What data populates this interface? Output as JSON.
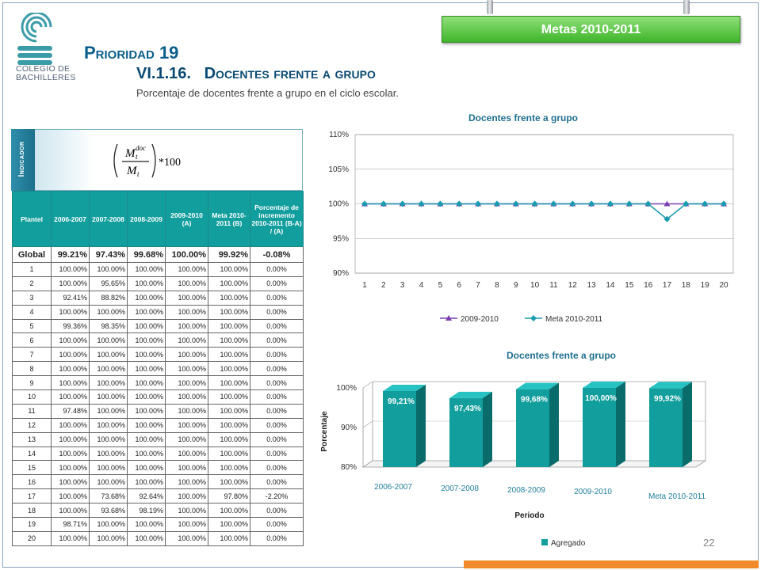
{
  "header": {
    "metas": "Metas 2010-2011",
    "prioridad": "Prioridad 19",
    "section": "VI.1.16.   Docentes frente a grupo",
    "subtitle": "Porcentaje de docentes frente a grupo en el ciclo escolar.",
    "logo_line1": "COLEGIO DE",
    "logo_line2": "BACHILLERES"
  },
  "indicador": {
    "label": "Indicador",
    "formula_numerator": "M",
    "formula_numerator_sup": "doc",
    "formula_numerator_sub": "t",
    "formula_denominator": "M",
    "formula_denominator_sub": "t",
    "formula_multiplier": "*100"
  },
  "table": {
    "headers": [
      "Plantel",
      "2006-2007",
      "2007-2008",
      "2008-2009",
      "2009-2010 (A)",
      "Meta 2010-2011 (B)",
      "Porcentaje de incremento 2010-2011 (B-A) / (A)"
    ],
    "global": [
      "Global",
      "99.21%",
      "97.43%",
      "99.68%",
      "100.00%",
      "99.92%",
      "-0.08%"
    ],
    "rows": [
      [
        "1",
        "100.00%",
        "100.00%",
        "100.00%",
        "100.00%",
        "100.00%",
        "0.00%"
      ],
      [
        "2",
        "100.00%",
        "95.65%",
        "100.00%",
        "100.00%",
        "100.00%",
        "0.00%"
      ],
      [
        "3",
        "92.41%",
        "88.82%",
        "100.00%",
        "100.00%",
        "100.00%",
        "0.00%"
      ],
      [
        "4",
        "100.00%",
        "100.00%",
        "100.00%",
        "100.00%",
        "100.00%",
        "0.00%"
      ],
      [
        "5",
        "99.36%",
        "98.35%",
        "100.00%",
        "100.00%",
        "100.00%",
        "0.00%"
      ],
      [
        "6",
        "100.00%",
        "100.00%",
        "100.00%",
        "100.00%",
        "100.00%",
        "0.00%"
      ],
      [
        "7",
        "100.00%",
        "100.00%",
        "100.00%",
        "100.00%",
        "100.00%",
        "0.00%"
      ],
      [
        "8",
        "100.00%",
        "100.00%",
        "100.00%",
        "100.00%",
        "100.00%",
        "0.00%"
      ],
      [
        "9",
        "100.00%",
        "100.00%",
        "100.00%",
        "100.00%",
        "100.00%",
        "0.00%"
      ],
      [
        "10",
        "100.00%",
        "100.00%",
        "100.00%",
        "100.00%",
        "100.00%",
        "0.00%"
      ],
      [
        "11",
        "97.48%",
        "100.00%",
        "100.00%",
        "100.00%",
        "100.00%",
        "0.00%"
      ],
      [
        "12",
        "100.00%",
        "100.00%",
        "100.00%",
        "100.00%",
        "100.00%",
        "0.00%"
      ],
      [
        "13",
        "100.00%",
        "100.00%",
        "100.00%",
        "100.00%",
        "100.00%",
        "0.00%"
      ],
      [
        "14",
        "100.00%",
        "100.00%",
        "100.00%",
        "100.00%",
        "100.00%",
        "0.00%"
      ],
      [
        "15",
        "100.00%",
        "100.00%",
        "100.00%",
        "100.00%",
        "100.00%",
        "0.00%"
      ],
      [
        "16",
        "100.00%",
        "100.00%",
        "100.00%",
        "100.00%",
        "100.00%",
        "0.00%"
      ],
      [
        "17",
        "100.00%",
        "73.68%",
        "92.64%",
        "100.00%",
        "97.80%",
        "-2.20%"
      ],
      [
        "18",
        "100.00%",
        "93.68%",
        "98.19%",
        "100.00%",
        "100.00%",
        "0.00%"
      ],
      [
        "19",
        "98.71%",
        "100.00%",
        "100.00%",
        "100.00%",
        "100.00%",
        "0.00%"
      ],
      [
        "20",
        "100.00%",
        "100.00%",
        "100.00%",
        "100.00%",
        "100.00%",
        "0.00%"
      ]
    ]
  },
  "page_number": "22",
  "colors": {
    "teal": "#139e9e",
    "purple": "#7a3fb0",
    "line_teal": "#1b9bb0",
    "green_badge": "#3fb52a",
    "orange_bar": "#f08a2a"
  },
  "chart_data": [
    {
      "type": "line",
      "title": "Docentes frente a grupo",
      "x": [
        "1",
        "2",
        "3",
        "4",
        "5",
        "6",
        "7",
        "8",
        "9",
        "10",
        "11",
        "12",
        "13",
        "14",
        "15",
        "16",
        "17",
        "18",
        "19",
        "20"
      ],
      "series": [
        {
          "name": "2009-2010",
          "values": [
            100,
            100,
            100,
            100,
            100,
            100,
            100,
            100,
            100,
            100,
            100,
            100,
            100,
            100,
            100,
            100,
            100,
            100,
            100,
            100
          ],
          "color": "#7a3fb0"
        },
        {
          "name": "Meta 2010-2011",
          "values": [
            100,
            100,
            100,
            100,
            100,
            100,
            100,
            100,
            100,
            100,
            100,
            100,
            100,
            100,
            100,
            100,
            97.8,
            100,
            100,
            100
          ],
          "color": "#1b9bb0"
        }
      ],
      "yticks": [
        "90%",
        "95%",
        "100%",
        "105%",
        "110%"
      ],
      "ylim": [
        90,
        110
      ],
      "legend": "bottom",
      "grid": true
    },
    {
      "type": "bar",
      "title": "Docentes frente a grupo",
      "categories": [
        "2006-2007",
        "2007-2008",
        "2008-2009",
        "2009-2010",
        "Meta 2010-2011"
      ],
      "series": [
        {
          "name": "Agregado",
          "values": [
            99.21,
            97.43,
            99.68,
            100.0,
            99.92
          ],
          "color": "#139e9e"
        }
      ],
      "data_labels": [
        "99,21%",
        "97,43%",
        "99,68%",
        "100,00%",
        "99,92%"
      ],
      "yticks": [
        "80%",
        "90%",
        "100%"
      ],
      "ylim": [
        80,
        100
      ],
      "xlabel": "Periodo",
      "ylabel": "Porcentaje",
      "legend": "bottom",
      "grid": true
    }
  ]
}
